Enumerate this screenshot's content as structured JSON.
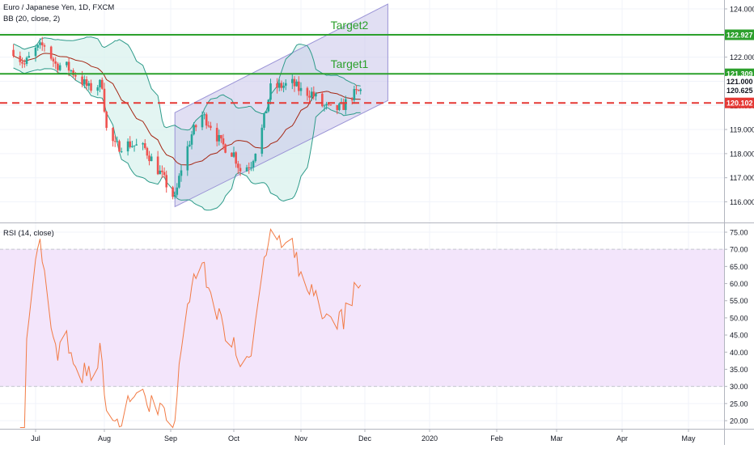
{
  "header": {
    "symbol_title": "Euro / Japanese Yen, 1D, FXCM",
    "bb_label": "BB (20, close, 2)",
    "rsi_label": "RSI (14, close)"
  },
  "colors": {
    "candle_up": "#26a69a",
    "candle_down": "#ef5350",
    "bb_basis": "#a52714",
    "bb_band": "#2e9b8a",
    "bb_fill": "#d7f1ec",
    "target_line": "#2ca02c",
    "support_line": "#e53935",
    "channel_fill": "#c9c4ea",
    "rsi_line": "#f27b45",
    "rsi_band_fill": "#f3e5fb"
  },
  "chart_data": [
    {
      "type": "candlestick",
      "title": "Euro / Japanese Yen, 1D, FXCM",
      "indicator": "BB (20, close, 2)",
      "x_ticks": [
        "Jul",
        "Aug",
        "Sep",
        "Oct",
        "Nov",
        "Dec",
        "2020",
        "Feb",
        "Mar",
        "Apr",
        "May"
      ],
      "y_ticks": [
        116.0,
        117.0,
        118.0,
        119.0,
        120.0,
        121.0,
        122.0,
        123.0,
        124.0
      ],
      "ylim": [
        115.6,
        124.3
      ],
      "price_tags": [
        122.927,
        121.309,
        121.0,
        120.625,
        120.102
      ],
      "annotations": [
        {
          "text": "Target2",
          "value": 122.927
        },
        {
          "text": "Target1",
          "value": 121.309
        }
      ],
      "support_level": 120.102,
      "channel": {
        "lower_start": {
          "date": "2019-09-03",
          "value": 115.8
        },
        "lower_end": {
          "date": "2019-12-12",
          "value": 120.2
        },
        "upper_start": {
          "date": "2019-09-03",
          "value": 119.7
        },
        "upper_end": {
          "date": "2019-12-12",
          "value": 124.2
        }
      },
      "grid": true
    },
    {
      "type": "line",
      "title": "RSI (14, close)",
      "x_ticks": [
        "Jul",
        "Aug",
        "Sep",
        "Oct",
        "Nov",
        "Dec",
        "2020",
        "Feb",
        "Mar",
        "Apr",
        "May"
      ],
      "y_ticks": [
        20.0,
        25.0,
        30.0,
        35.0,
        40.0,
        45.0,
        50.0,
        55.0,
        60.0,
        65.0,
        70.0,
        75.0
      ],
      "ylim": [
        17.5,
        77.0
      ],
      "band": [
        30,
        70
      ],
      "grid": true
    }
  ]
}
